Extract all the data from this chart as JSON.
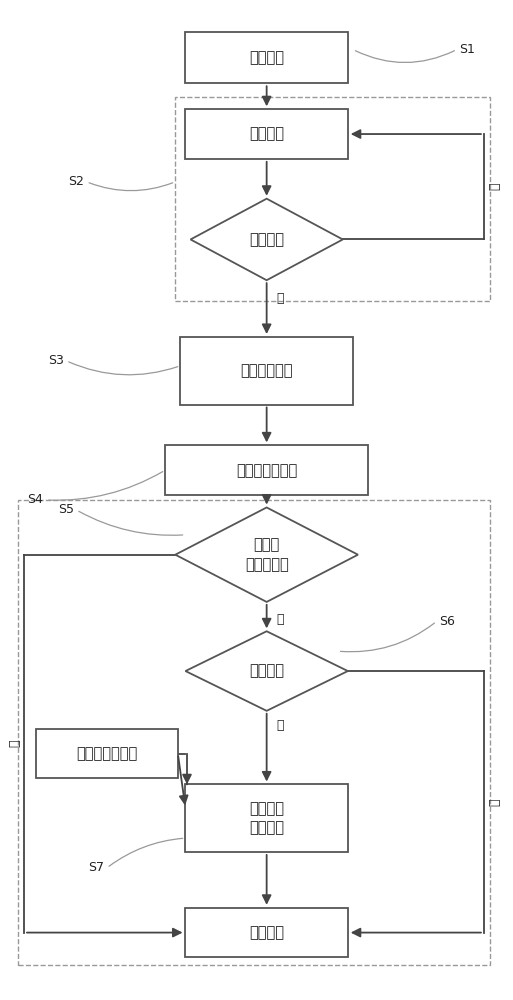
{
  "figsize": [
    5.13,
    10.0
  ],
  "dpi": 100,
  "bg_color": "#ffffff",
  "ec": "#555555",
  "arrow_color": "#444444",
  "text_color": "#222222",
  "dashed_ec": "#999999",
  "s1_label": "数据采集",
  "in_label": "输入数据",
  "ch_label": "检查数据",
  "an_label": "分析处理数据",
  "se_label": "浸润线方程计算",
  "st_label": "尾矿坝\n稳定性计算",
  "pi_label": "管涌判定",
  "st2_label": "尾矿坝阶段分析",
  "sc_label": "情景构建\n动画制作",
  "out_label": "输出结果",
  "yes": "是",
  "no": "否",
  "step_labels": [
    "S1",
    "S2",
    "S3",
    "S4",
    "S5",
    "S6",
    "S7"
  ],
  "font_size": 10.5,
  "small_font": 9
}
